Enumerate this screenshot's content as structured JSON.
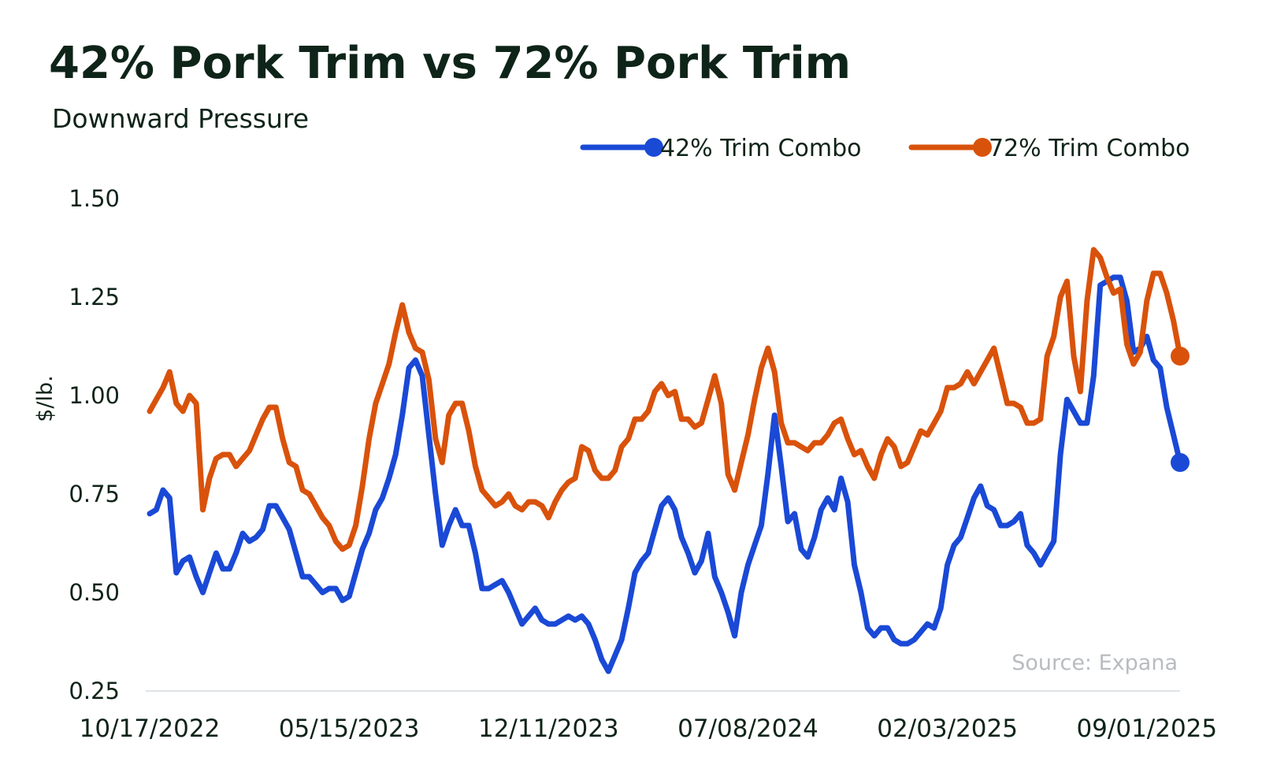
{
  "chart_data": {
    "type": "line",
    "title": "42% Pork Trim vs 72% Pork Trim",
    "subtitle": "Downward Pressure",
    "ylabel": "$/lb.",
    "xlabel": "",
    "ylim": [
      0.25,
      1.5
    ],
    "yticks": [
      "1.50",
      "1.25",
      "1.00",
      "0.75",
      "0.50",
      "0.25"
    ],
    "ytick_values": [
      1.5,
      1.25,
      1.0,
      0.75,
      0.5,
      0.25
    ],
    "xtick_labels": [
      "10/17/2022",
      "05/15/2023",
      "12/11/2023",
      "07/08/2024",
      "02/03/2025",
      "09/01/2025"
    ],
    "xtick_indices": [
      0,
      30,
      60,
      90,
      120,
      150
    ],
    "legend_position": "top-right",
    "source": "Source: Expana",
    "colors": {
      "s42": "#1a49d6",
      "s72": "#d9520b",
      "axis": "#e1e4e6",
      "text": "#0f2418"
    },
    "series": [
      {
        "name": "42% Trim Combo",
        "values": [
          0.7,
          0.71,
          0.76,
          0.74,
          0.55,
          0.58,
          0.59,
          0.54,
          0.5,
          0.55,
          0.6,
          0.56,
          0.56,
          0.6,
          0.65,
          0.63,
          0.64,
          0.66,
          0.72,
          0.72,
          0.69,
          0.66,
          0.6,
          0.54,
          0.54,
          0.52,
          0.5,
          0.51,
          0.51,
          0.48,
          0.49,
          0.55,
          0.61,
          0.65,
          0.71,
          0.74,
          0.79,
          0.85,
          0.95,
          1.07,
          1.09,
          1.05,
          0.9,
          0.75,
          0.62,
          0.67,
          0.71,
          0.67,
          0.67,
          0.6,
          0.51,
          0.51,
          0.52,
          0.53,
          0.5,
          0.46,
          0.42,
          0.44,
          0.46,
          0.43,
          0.42,
          0.42,
          0.43,
          0.44,
          0.43,
          0.44,
          0.42,
          0.38,
          0.33,
          0.3,
          0.34,
          0.38,
          0.46,
          0.55,
          0.58,
          0.6,
          0.66,
          0.72,
          0.74,
          0.71,
          0.64,
          0.6,
          0.55,
          0.58,
          0.65,
          0.54,
          0.5,
          0.45,
          0.39,
          0.5,
          0.57,
          0.62,
          0.67,
          0.8,
          0.95,
          0.82,
          0.68,
          0.7,
          0.61,
          0.59,
          0.64,
          0.71,
          0.74,
          0.71,
          0.79,
          0.73,
          0.57,
          0.5,
          0.41,
          0.39,
          0.41,
          0.41,
          0.38,
          0.37,
          0.37,
          0.38,
          0.4,
          0.42,
          0.41,
          0.46,
          0.57,
          0.62,
          0.64,
          0.69,
          0.74,
          0.77,
          0.72,
          0.71,
          0.67,
          0.67,
          0.68,
          0.7,
          0.62,
          0.6,
          0.57,
          0.6,
          0.63,
          0.85,
          0.99,
          0.96,
          0.93,
          0.93,
          1.05,
          1.28,
          1.29,
          1.3,
          1.3,
          1.24,
          1.11,
          1.12,
          1.15,
          1.09,
          1.07,
          0.97,
          0.9,
          0.83
        ]
      },
      {
        "name": "72% Trim Combo",
        "values": [
          0.96,
          0.99,
          1.02,
          1.06,
          0.98,
          0.96,
          1.0,
          0.98,
          0.71,
          0.79,
          0.84,
          0.85,
          0.85,
          0.82,
          0.84,
          0.86,
          0.9,
          0.94,
          0.97,
          0.97,
          0.89,
          0.83,
          0.82,
          0.76,
          0.75,
          0.72,
          0.69,
          0.67,
          0.63,
          0.61,
          0.62,
          0.67,
          0.77,
          0.89,
          0.98,
          1.03,
          1.08,
          1.16,
          1.23,
          1.16,
          1.12,
          1.11,
          1.04,
          0.89,
          0.83,
          0.95,
          0.98,
          0.98,
          0.91,
          0.82,
          0.76,
          0.74,
          0.72,
          0.73,
          0.75,
          0.72,
          0.71,
          0.73,
          0.73,
          0.72,
          0.69,
          0.73,
          0.76,
          0.78,
          0.79,
          0.87,
          0.86,
          0.81,
          0.79,
          0.79,
          0.81,
          0.87,
          0.89,
          0.94,
          0.94,
          0.96,
          1.01,
          1.03,
          1.0,
          1.01,
          0.94,
          0.94,
          0.92,
          0.93,
          0.99,
          1.05,
          0.98,
          0.8,
          0.76,
          0.83,
          0.9,
          0.99,
          1.07,
          1.12,
          1.06,
          0.93,
          0.88,
          0.88,
          0.87,
          0.86,
          0.88,
          0.88,
          0.9,
          0.93,
          0.94,
          0.89,
          0.85,
          0.86,
          0.82,
          0.79,
          0.85,
          0.89,
          0.87,
          0.82,
          0.83,
          0.87,
          0.91,
          0.9,
          0.93,
          0.96,
          1.02,
          1.02,
          1.03,
          1.06,
          1.03,
          1.06,
          1.09,
          1.12,
          1.05,
          0.98,
          0.98,
          0.97,
          0.93,
          0.93,
          0.94,
          1.1,
          1.15,
          1.25,
          1.29,
          1.1,
          1.01,
          1.24,
          1.37,
          1.35,
          1.3,
          1.26,
          1.27,
          1.13,
          1.08,
          1.11,
          1.24,
          1.31,
          1.31,
          1.26,
          1.19,
          1.1
        ]
      }
    ]
  }
}
